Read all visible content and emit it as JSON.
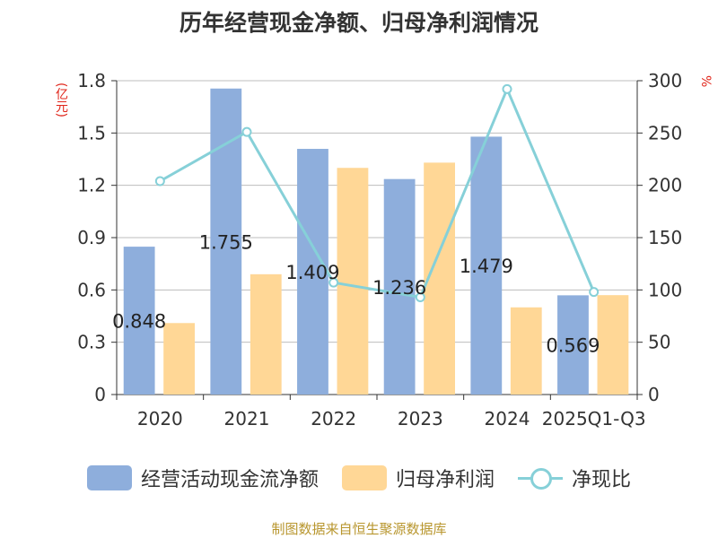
{
  "chart_data": {
    "type": "bar",
    "title": "历年经营现金净额、归母净利润情况",
    "categories": [
      "2020",
      "2021",
      "2022",
      "2023",
      "2024",
      "2025Q1-Q3"
    ],
    "series": [
      {
        "name": "经营活动现金流净额",
        "type": "bar",
        "color": "#8eaedc",
        "values": [
          0.848,
          1.755,
          1.409,
          1.236,
          1.479,
          0.569
        ],
        "labels": [
          "0.848",
          "1.755",
          "1.409",
          "1.236",
          "1.479",
          "0.569"
        ]
      },
      {
        "name": "归母净利润",
        "type": "bar",
        "color": "#ffd796",
        "values": [
          0.41,
          0.69,
          1.3,
          1.33,
          0.5,
          0.57
        ]
      },
      {
        "name": "净现比",
        "type": "line",
        "axis": "right",
        "color": "#86d0d8",
        "values": [
          204,
          251,
          107,
          93,
          292,
          98
        ]
      }
    ],
    "y_left": {
      "unit": "(亿元)",
      "range": [
        0,
        1.8
      ],
      "ticks": [
        "0",
        "0.3",
        "0.6",
        "0.9",
        "1.2",
        "1.5",
        "1.8"
      ]
    },
    "y_right": {
      "unit": "%",
      "range": [
        0,
        300
      ],
      "ticks": [
        "0",
        "50",
        "100",
        "150",
        "200",
        "250",
        "300"
      ]
    },
    "grid": true,
    "legend_position": "bottom"
  },
  "source": "制图数据来自恒生聚源数据库"
}
